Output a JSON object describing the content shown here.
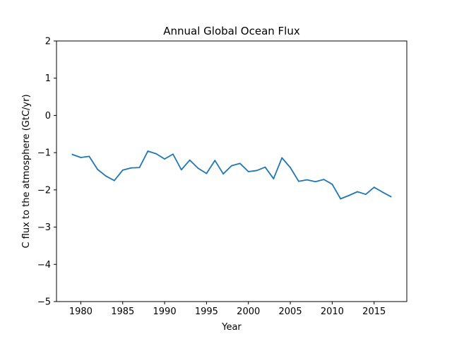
{
  "chart_data": {
    "type": "line",
    "title": "Annual Global Ocean Flux",
    "xlabel": "Year",
    "ylabel": "C flux to the atmosphere (GtC/yr)",
    "xlim": [
      1977.1,
      2018.9
    ],
    "ylim": [
      -5,
      2
    ],
    "xticks": [
      1980,
      1985,
      1990,
      1995,
      2000,
      2005,
      2010,
      2015
    ],
    "xtick_labels": [
      "1980",
      "1985",
      "1990",
      "1995",
      "2000",
      "2005",
      "2010",
      "2015"
    ],
    "yticks": [
      2,
      1,
      0,
      -1,
      -2,
      -3,
      -4,
      -5
    ],
    "ytick_labels": [
      "2",
      "1",
      "0",
      "−1",
      "−2",
      "−3",
      "−4",
      "−5"
    ],
    "grid": false,
    "series": [
      {
        "color": "#1f77b4",
        "x": [
          1979,
          1980,
          1981,
          1982,
          1983,
          1984,
          1985,
          1986,
          1987,
          1988,
          1989,
          1990,
          1991,
          1992,
          1993,
          1994,
          1995,
          1996,
          1997,
          1998,
          1999,
          2000,
          2001,
          2002,
          2003,
          2004,
          2005,
          2006,
          2007,
          2008,
          2009,
          2010,
          2011,
          2012,
          2013,
          2014,
          2015,
          2016,
          2017
        ],
        "y": [
          -1.05,
          -1.13,
          -1.1,
          -1.45,
          -1.63,
          -1.75,
          -1.47,
          -1.41,
          -1.4,
          -0.96,
          -1.03,
          -1.17,
          -1.04,
          -1.46,
          -1.2,
          -1.42,
          -1.56,
          -1.21,
          -1.57,
          -1.35,
          -1.29,
          -1.51,
          -1.48,
          -1.39,
          -1.7,
          -1.14,
          -1.4,
          -1.77,
          -1.73,
          -1.78,
          -1.72,
          -1.85,
          -2.24,
          -2.15,
          -2.05,
          -2.12,
          -1.93,
          -2.06,
          -2.18
        ]
      }
    ]
  }
}
